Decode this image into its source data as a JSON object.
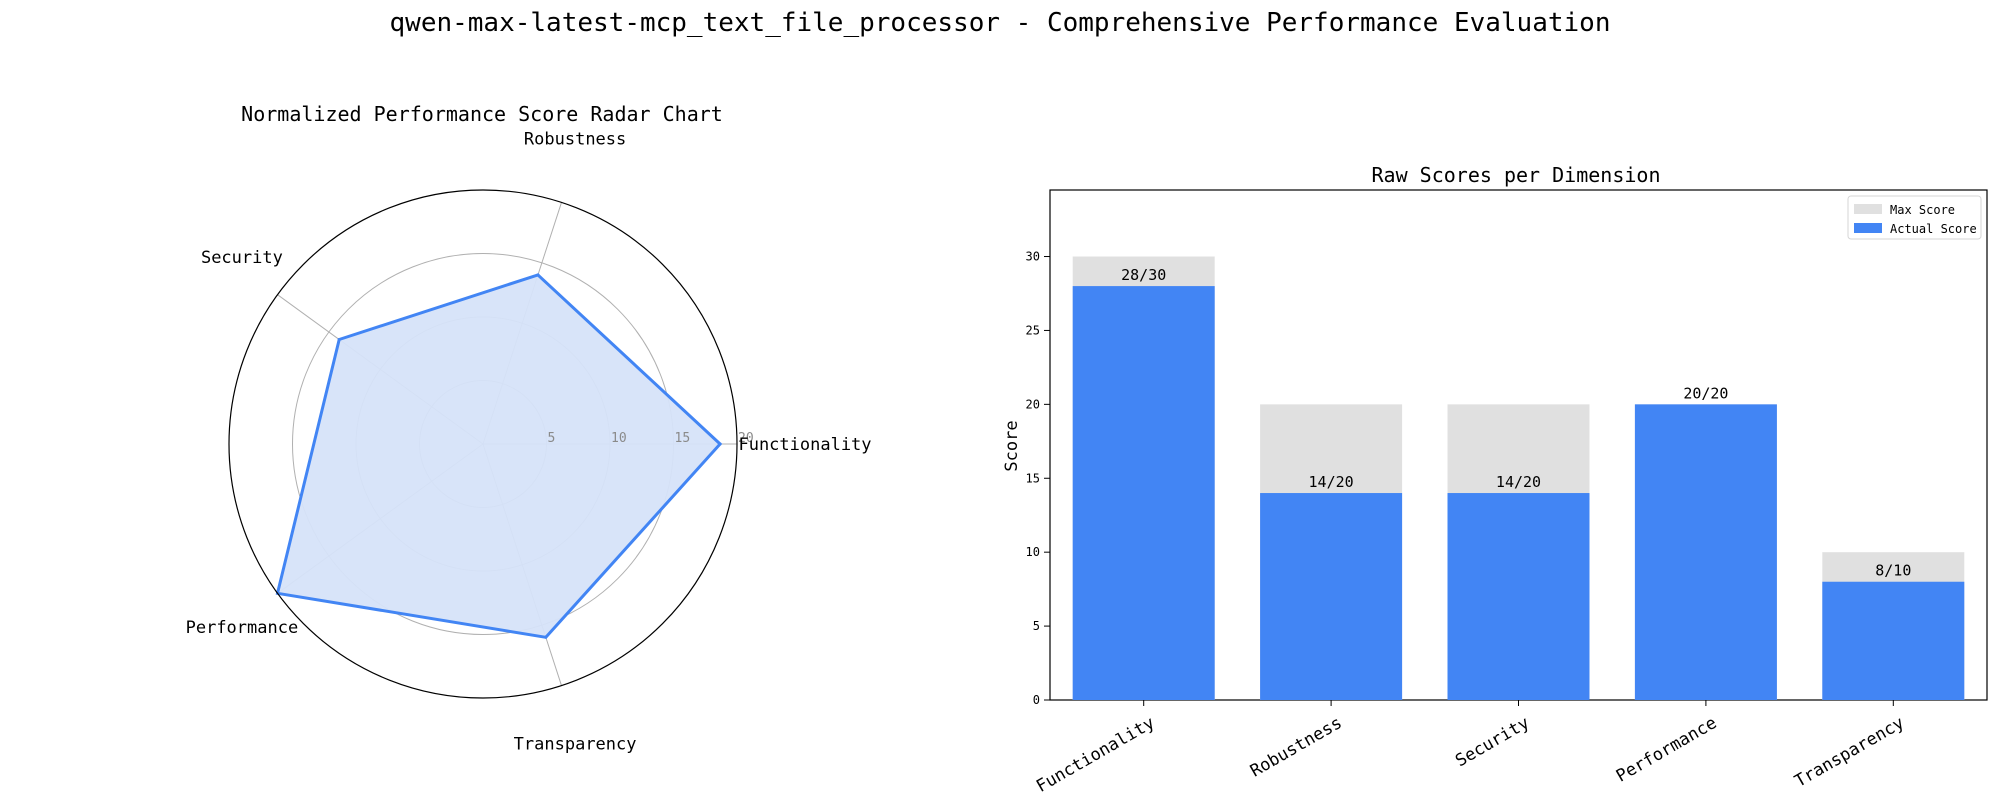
{
  "figure": {
    "title": "qwen-max-latest-mcp_text_file_processor - Comprehensive Performance Evaluation"
  },
  "chart_data": [
    {
      "type": "radar",
      "title": "Normalized Performance Score Radar Chart",
      "categories": [
        "Functionality",
        "Robustness",
        "Security",
        "Performance",
        "Transparency"
      ],
      "values": [
        18.67,
        14,
        14,
        20,
        16
      ],
      "rlim": [
        0,
        20
      ],
      "rticks": [
        "5",
        "10",
        "15",
        "20"
      ],
      "grid": true,
      "colors": {
        "line": "#4285f4",
        "fill": "#d6e3f9"
      }
    },
    {
      "type": "bar",
      "title": "Raw Scores per Dimension",
      "xlabel": "",
      "ylabel": "Score",
      "categories": [
        "Functionality",
        "Robustness",
        "Security",
        "Performance",
        "Transparency"
      ],
      "series": [
        {
          "name": "Max Score",
          "values": [
            30,
            20,
            20,
            20,
            10
          ],
          "color": "#e0e0e0"
        },
        {
          "name": "Actual Score",
          "values": [
            28,
            14,
            14,
            20,
            8
          ],
          "color": "#4285f4"
        }
      ],
      "data_labels": [
        "28/30",
        "14/20",
        "14/20",
        "20/20",
        "8/10"
      ],
      "ylim": [
        0,
        34.5
      ],
      "yticks": [
        0,
        5,
        10,
        15,
        20,
        25,
        30
      ],
      "grid": false,
      "legend": "top-right"
    }
  ]
}
